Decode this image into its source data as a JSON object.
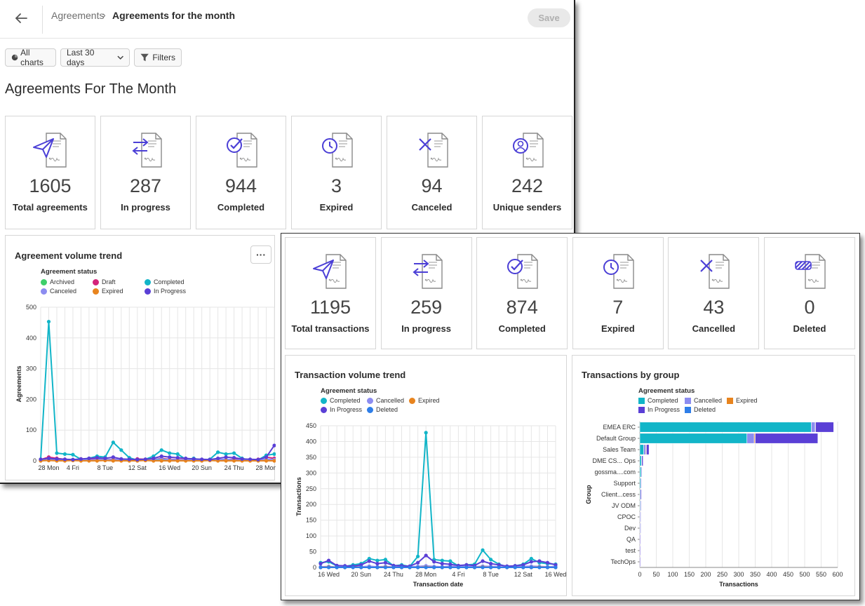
{
  "header": {
    "breadcrumb_root": "Agreements",
    "breadcrumb_separator": "›",
    "breadcrumb_current": "Agreements for the month",
    "save_label": "Save"
  },
  "toolbar": {
    "all_charts_label": "All charts",
    "range_label": "Last 30 days",
    "filters_label": "Filters"
  },
  "page_title": "Agreements For The Month",
  "agreement_cards": [
    {
      "icon": "send-document-icon",
      "value": "1605",
      "label": "Total agreements"
    },
    {
      "icon": "in-progress-document-icon",
      "value": "287",
      "label": "In progress"
    },
    {
      "icon": "completed-document-icon",
      "value": "944",
      "label": "Completed"
    },
    {
      "icon": "expired-document-icon",
      "value": "3",
      "label": "Expired"
    },
    {
      "icon": "canceled-document-icon",
      "value": "94",
      "label": "Canceled"
    },
    {
      "icon": "sender-document-icon",
      "value": "242",
      "label": "Unique senders"
    }
  ],
  "transaction_cards": [
    {
      "icon": "send-document-icon",
      "value": "1195",
      "label": "Total transactions"
    },
    {
      "icon": "in-progress-document-icon",
      "value": "259",
      "label": "In progress"
    },
    {
      "icon": "completed-document-icon",
      "value": "874",
      "label": "Completed"
    },
    {
      "icon": "expired-document-icon",
      "value": "7",
      "label": "Expired"
    },
    {
      "icon": "canceled-document-icon",
      "value": "43",
      "label": "Cancelled"
    },
    {
      "icon": "deleted-document-icon",
      "value": "0",
      "label": "Deleted"
    }
  ],
  "colors": {
    "completed": "#12b5c8",
    "canceled": "#8c8cf0",
    "expired": "#e8841e",
    "in_progress": "#5a3fd6",
    "deleted": "#2e7ee8",
    "archived": "#3ecf6a",
    "draft": "#d4237a",
    "icon_accent": "#4b3fd6"
  },
  "chart_data": [
    {
      "type": "line",
      "title": "Agreement volume trend",
      "legend_title": "Agreement status",
      "legend_placement": "top-left",
      "ylabel": "Agreements",
      "xlabel": "",
      "ylim": [
        0,
        500
      ],
      "yticks": [
        0,
        100,
        200,
        300,
        400,
        500
      ],
      "grid": true,
      "x_tick_labels": [
        "28 Mon",
        "4 Fri",
        "8 Tue",
        "12 Sat",
        "16 Wed",
        "20 Sun",
        "24 Thu",
        "28 Mon"
      ],
      "x_tick_index": [
        1,
        4,
        8,
        12,
        16,
        20,
        24,
        28
      ],
      "x_count": 30,
      "series": [
        {
          "name": "Archived",
          "color": "#3ecf6a",
          "values": [
            2,
            2,
            2,
            2,
            2,
            2,
            2,
            2,
            2,
            2,
            2,
            2,
            2,
            2,
            2,
            2,
            2,
            2,
            2,
            2,
            2,
            2,
            2,
            2,
            2,
            2,
            2,
            2,
            2,
            2
          ]
        },
        {
          "name": "Draft",
          "color": "#d4237a",
          "values": [
            4,
            12,
            8,
            5,
            3,
            6,
            4,
            7,
            3,
            5,
            4,
            3,
            6,
            5,
            4,
            8,
            5,
            4,
            3,
            6,
            2,
            4,
            5,
            3,
            6,
            4,
            3,
            5,
            12,
            8
          ]
        },
        {
          "name": "Completed",
          "color": "#12b5c8",
          "values": [
            5,
            453,
            25,
            22,
            20,
            5,
            8,
            15,
            12,
            60,
            35,
            10,
            2,
            5,
            15,
            35,
            25,
            22,
            5,
            8,
            2,
            5,
            28,
            22,
            25,
            8,
            2,
            3,
            18,
            22
          ]
        },
        {
          "name": "Canceled",
          "color": "#8c8cf0",
          "values": [
            1,
            3,
            5,
            2,
            4,
            3,
            2,
            4,
            5,
            3,
            6,
            2,
            3,
            4,
            5,
            6,
            4,
            3,
            2,
            5,
            3,
            2,
            4,
            5,
            3,
            2,
            4,
            3,
            5,
            4
          ]
        },
        {
          "name": "Expired",
          "color": "#e8841e",
          "values": [
            0,
            1,
            0,
            0,
            1,
            0,
            0,
            0,
            1,
            0,
            0,
            0,
            0,
            1,
            0,
            0,
            0,
            0,
            0,
            0,
            0,
            1,
            0,
            0,
            0,
            0,
            0,
            0,
            0,
            0
          ]
        },
        {
          "name": "In Progress",
          "color": "#5a3fd6",
          "values": [
            5,
            8,
            6,
            5,
            4,
            6,
            8,
            10,
            8,
            12,
            6,
            5,
            4,
            5,
            8,
            15,
            12,
            10,
            8,
            6,
            5,
            4,
            8,
            12,
            10,
            6,
            5,
            4,
            12,
            50
          ]
        }
      ]
    },
    {
      "type": "line",
      "title": "Transaction volume trend",
      "legend_title": "Agreement status",
      "legend_placement": "top-left",
      "ylabel": "Transactions",
      "xlabel": "Transaction date",
      "ylim": [
        0,
        450
      ],
      "yticks": [
        0,
        50,
        100,
        150,
        200,
        250,
        300,
        350,
        400,
        450
      ],
      "grid": true,
      "x_tick_labels": [
        "16 Wed",
        "20 Sun",
        "24 Thu",
        "28 Mon",
        "4 Fri",
        "8 Tue",
        "12 Sat",
        "16 Wed"
      ],
      "x_tick_index": [
        1,
        5,
        9,
        13,
        17,
        21,
        25,
        29
      ],
      "x_count": 30,
      "series": [
        {
          "name": "Completed",
          "color": "#12b5c8",
          "values": [
            15,
            18,
            5,
            3,
            8,
            12,
            28,
            22,
            25,
            5,
            8,
            3,
            35,
            428,
            25,
            22,
            20,
            5,
            8,
            10,
            55,
            25,
            10,
            2,
            5,
            10,
            28,
            15,
            12,
            10
          ]
        },
        {
          "name": "Cancelled",
          "color": "#8c8cf0",
          "values": [
            2,
            3,
            1,
            2,
            3,
            2,
            4,
            2,
            3,
            1,
            2,
            2,
            3,
            5,
            3,
            2,
            4,
            2,
            3,
            2,
            4,
            3,
            2,
            1,
            2,
            3,
            4,
            3,
            2,
            3
          ]
        },
        {
          "name": "Expired",
          "color": "#e8841e",
          "values": [
            0,
            1,
            0,
            0,
            1,
            0,
            0,
            0,
            1,
            0,
            0,
            0,
            0,
            1,
            0,
            0,
            0,
            0,
            0,
            0,
            1,
            0,
            0,
            0,
            0,
            0,
            0,
            1,
            0,
            0
          ]
        },
        {
          "name": "In Progress",
          "color": "#5a3fd6",
          "values": [
            12,
            22,
            6,
            5,
            4,
            8,
            20,
            12,
            15,
            6,
            5,
            4,
            15,
            38,
            18,
            12,
            10,
            6,
            8,
            6,
            20,
            12,
            8,
            4,
            5,
            8,
            18,
            20,
            15,
            8
          ]
        },
        {
          "name": "Deleted",
          "color": "#2e7ee8",
          "values": [
            0,
            0,
            0,
            0,
            0,
            0,
            0,
            0,
            0,
            0,
            0,
            0,
            0,
            0,
            0,
            0,
            0,
            0,
            0,
            0,
            0,
            0,
            0,
            0,
            0,
            0,
            0,
            0,
            0,
            0
          ]
        }
      ]
    },
    {
      "type": "bar",
      "orientation": "horizontal",
      "stacked": true,
      "title": "Transactions by group",
      "legend_title": "Agreement status",
      "legend_placement": "top-left",
      "xlabel": "Transactions",
      "ylabel": "Group",
      "xlim": [
        0,
        600
      ],
      "xticks": [
        0,
        50,
        100,
        150,
        200,
        250,
        300,
        350,
        400,
        450,
        500,
        550,
        600
      ],
      "grid": true,
      "categories": [
        "EMEA ERC",
        "Default Group",
        "Sales Team",
        "DME CS... Ops",
        "gossma....com",
        "Support",
        "Client...cess",
        "JV ODM",
        "CPOC",
        "Dev",
        "QA",
        "test",
        "TechOps"
      ],
      "series": [
        {
          "name": "Completed",
          "color": "#12b5c8",
          "values": [
            520,
            325,
            12,
            5,
            4,
            3,
            2,
            2,
            1,
            1,
            0.5,
            0.5,
            0.5
          ]
        },
        {
          "name": "Cancelled",
          "color": "#8c8cf0",
          "values": [
            12,
            22,
            6,
            1,
            0,
            0,
            0,
            0,
            0,
            0,
            0,
            0,
            0
          ]
        },
        {
          "name": "Expired",
          "color": "#e8841e",
          "values": [
            1,
            3,
            2,
            0,
            0,
            0,
            0,
            0,
            0,
            0,
            0,
            0,
            0
          ]
        },
        {
          "name": "In Progress",
          "color": "#5a3fd6",
          "values": [
            55,
            190,
            8,
            4,
            2,
            2,
            3,
            2,
            1,
            1,
            1,
            1,
            0.5
          ]
        },
        {
          "name": "Deleted",
          "color": "#2e7ee8",
          "values": [
            0,
            0,
            0,
            0,
            0,
            0,
            0,
            0,
            0,
            0,
            0,
            0,
            0
          ]
        }
      ]
    }
  ]
}
